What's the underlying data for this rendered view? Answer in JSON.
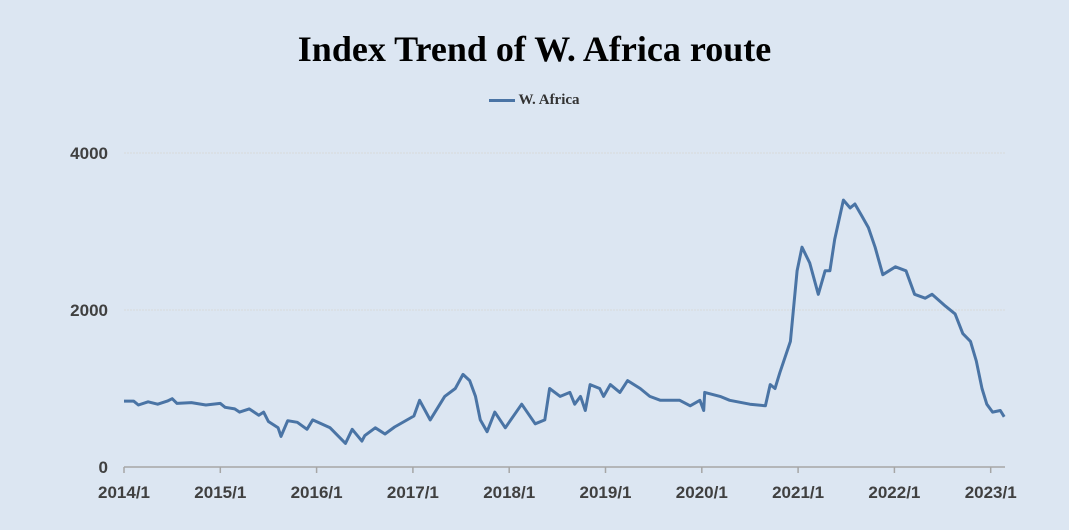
{
  "chart_data": {
    "type": "line",
    "title": "Index Trend of W. Africa route",
    "xlabel": "",
    "ylabel": "",
    "ylim": [
      0,
      4000
    ],
    "yticks": [
      "0",
      "2000",
      "4000"
    ],
    "xticks": [
      "2014/1",
      "2015/1",
      "2016/1",
      "2017/1",
      "2018/1",
      "2019/1",
      "2020/1",
      "2021/1",
      "2022/1",
      "2023/1"
    ],
    "xlim": [
      2014,
      2023.15
    ],
    "grid": true,
    "legend_position": "top-center",
    "color": "#4a74a5",
    "series": [
      {
        "name": "W. Africa",
        "points": [
          [
            2014.0,
            840
          ],
          [
            2014.1,
            840
          ],
          [
            2014.15,
            790
          ],
          [
            2014.25,
            830
          ],
          [
            2014.35,
            800
          ],
          [
            2014.45,
            840
          ],
          [
            2014.5,
            870
          ],
          [
            2014.55,
            810
          ],
          [
            2014.7,
            820
          ],
          [
            2014.85,
            790
          ],
          [
            2015.0,
            810
          ],
          [
            2015.05,
            760
          ],
          [
            2015.15,
            740
          ],
          [
            2015.2,
            700
          ],
          [
            2015.3,
            740
          ],
          [
            2015.4,
            660
          ],
          [
            2015.45,
            700
          ],
          [
            2015.5,
            580
          ],
          [
            2015.6,
            500
          ],
          [
            2015.63,
            390
          ],
          [
            2015.7,
            590
          ],
          [
            2015.8,
            570
          ],
          [
            2015.9,
            480
          ],
          [
            2015.96,
            600
          ],
          [
            2016.14,
            500
          ],
          [
            2016.3,
            300
          ],
          [
            2016.37,
            480
          ],
          [
            2016.47,
            330
          ],
          [
            2016.5,
            400
          ],
          [
            2016.61,
            500
          ],
          [
            2016.71,
            420
          ],
          [
            2016.81,
            510
          ],
          [
            2017.01,
            650
          ],
          [
            2017.07,
            850
          ],
          [
            2017.18,
            600
          ],
          [
            2017.33,
            900
          ],
          [
            2017.44,
            1000
          ],
          [
            2017.52,
            1180
          ],
          [
            2017.59,
            1100
          ],
          [
            2017.65,
            900
          ],
          [
            2017.7,
            600
          ],
          [
            2017.77,
            450
          ],
          [
            2017.85,
            700
          ],
          [
            2017.96,
            500
          ],
          [
            2018.13,
            800
          ],
          [
            2018.27,
            550
          ],
          [
            2018.37,
            600
          ],
          [
            2018.42,
            1000
          ],
          [
            2018.53,
            900
          ],
          [
            2018.63,
            950
          ],
          [
            2018.68,
            800
          ],
          [
            2018.74,
            900
          ],
          [
            2018.79,
            720
          ],
          [
            2018.84,
            1050
          ],
          [
            2018.94,
            1000
          ],
          [
            2018.98,
            900
          ],
          [
            2019.05,
            1050
          ],
          [
            2019.15,
            950
          ],
          [
            2019.23,
            1100
          ],
          [
            2019.36,
            1000
          ],
          [
            2019.46,
            900
          ],
          [
            2019.57,
            850
          ],
          [
            2019.77,
            850
          ],
          [
            2019.88,
            780
          ],
          [
            2019.98,
            850
          ],
          [
            2020.02,
            720
          ],
          [
            2020.03,
            950
          ],
          [
            2020.19,
            900
          ],
          [
            2020.29,
            850
          ],
          [
            2020.5,
            800
          ],
          [
            2020.66,
            780
          ],
          [
            2020.71,
            1050
          ],
          [
            2020.76,
            1000
          ],
          [
            2020.81,
            1200
          ],
          [
            2020.92,
            1600
          ],
          [
            2020.99,
            2500
          ],
          [
            2021.04,
            2800
          ],
          [
            2021.12,
            2600
          ],
          [
            2021.21,
            2200
          ],
          [
            2021.28,
            2500
          ],
          [
            2021.33,
            2500
          ],
          [
            2021.38,
            2900
          ],
          [
            2021.47,
            3400
          ],
          [
            2021.54,
            3300
          ],
          [
            2021.59,
            3350
          ],
          [
            2021.66,
            3200
          ],
          [
            2021.73,
            3050
          ],
          [
            2021.8,
            2800
          ],
          [
            2021.88,
            2450
          ],
          [
            2022.01,
            2550
          ],
          [
            2022.12,
            2500
          ],
          [
            2022.21,
            2200
          ],
          [
            2022.32,
            2150
          ],
          [
            2022.39,
            2200
          ],
          [
            2022.53,
            2050
          ],
          [
            2022.63,
            1950
          ],
          [
            2022.71,
            1700
          ],
          [
            2022.79,
            1600
          ],
          [
            2022.85,
            1350
          ],
          [
            2022.91,
            1000
          ],
          [
            2022.96,
            800
          ],
          [
            2023.02,
            700
          ],
          [
            2023.1,
            720
          ],
          [
            2023.14,
            640
          ]
        ]
      }
    ]
  }
}
